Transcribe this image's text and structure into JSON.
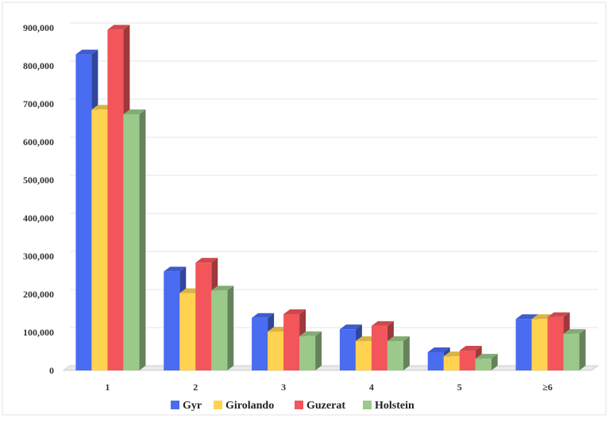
{
  "chart_data": {
    "type": "bar",
    "categories": [
      "1",
      "2",
      "3",
      "4",
      "5",
      "≥6"
    ],
    "series": [
      {
        "name": "Gyr",
        "values": [
          830000,
          260000,
          138000,
          108000,
          48000,
          135000
        ],
        "color": "#4A6CF0"
      },
      {
        "name": "Girolando",
        "values": [
          685000,
          203000,
          102000,
          77000,
          37000,
          135000
        ],
        "color": "#FFD24F"
      },
      {
        "name": "Guzerat",
        "values": [
          895000,
          283000,
          148000,
          117000,
          52000,
          140000
        ],
        "color": "#F2565A"
      },
      {
        "name": "Holstein",
        "values": [
          673000,
          210000,
          90000,
          77000,
          31000,
          96000
        ],
        "color": "#9BC98A"
      }
    ],
    "yticks": [
      "0",
      "100,000",
      "200,000",
      "300,000",
      "400,000",
      "500,000",
      "600,000",
      "700,000",
      "800,000",
      "900,000"
    ],
    "ylim": [
      0,
      900000
    ],
    "grid": true,
    "legend": "bottom"
  }
}
